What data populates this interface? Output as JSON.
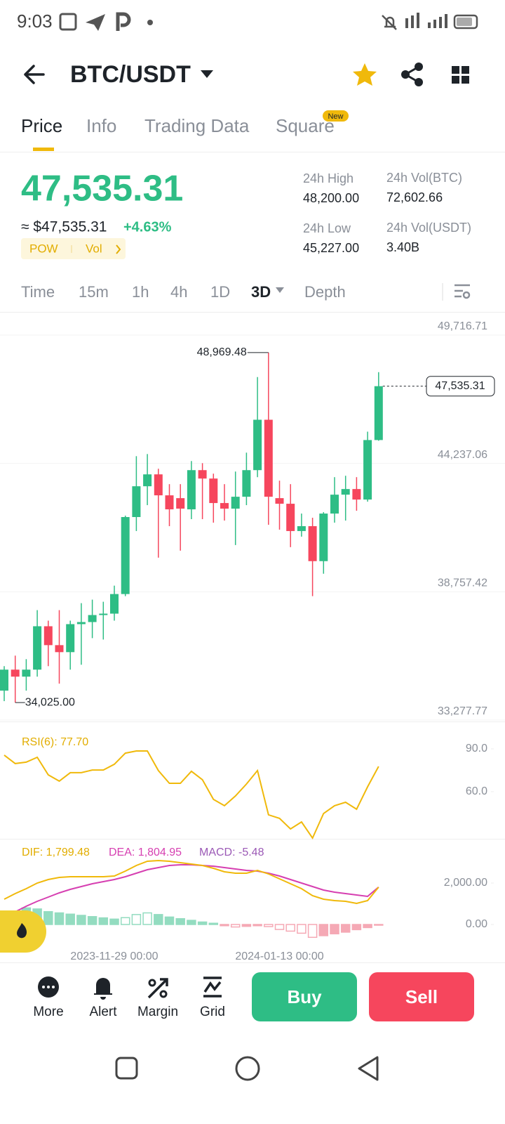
{
  "status_bar": {
    "time": "9:03"
  },
  "header": {
    "symbol": "BTC/USDT"
  },
  "tabs": [
    "Price",
    "Info",
    "Trading Data",
    "Square"
  ],
  "tab_badge": "New",
  "ticker": {
    "price": "47,535.31",
    "usd": "≈ $47,535.31",
    "change": "+4.63%",
    "tags": [
      "POW",
      "Vol"
    ],
    "stats": [
      {
        "label": "24h High",
        "value": "48,200.00"
      },
      {
        "label": "24h Vol(BTC)",
        "value": "72,602.66"
      },
      {
        "label": "24h Low",
        "value": "45,227.00"
      },
      {
        "label": "24h Vol(USDT)",
        "value": "3.40B"
      }
    ]
  },
  "intervals": [
    "Time",
    "15m",
    "1h",
    "4h",
    "1D",
    "3D",
    "Depth"
  ],
  "chart": {
    "type": "candlestick",
    "colors": {
      "up": "#2ebd85",
      "down": "#f6465d"
    },
    "ylim": [
      33277.77,
      49716.71
    ],
    "yticks": [
      {
        "value": 49716.71,
        "label": "49,716.71"
      },
      {
        "value": 44237.06,
        "label": "44,237.06"
      },
      {
        "value": 38757.42,
        "label": "38,757.42"
      },
      {
        "value": 33277.77,
        "label": "33,277.77"
      }
    ],
    "max_label": "48,969.48",
    "min_label": "34,025.00",
    "last_label": "47,535.31",
    "x_labels": [
      {
        "index": 10,
        "label": "2023-11-29 00:00"
      },
      {
        "index": 25,
        "label": "2024-01-13 00:00"
      }
    ],
    "candles": [
      {
        "open": 34534,
        "high": 35580,
        "low": 34086,
        "close": 35431
      },
      {
        "open": 35431,
        "high": 36029,
        "low": 34025,
        "close": 35132
      },
      {
        "open": 35132,
        "high": 35879,
        "low": 34534,
        "close": 35431
      },
      {
        "open": 35431,
        "high": 37972,
        "low": 35132,
        "close": 37284
      },
      {
        "open": 37284,
        "high": 37523,
        "low": 35580,
        "close": 36477
      },
      {
        "open": 36477,
        "high": 37972,
        "low": 34833,
        "close": 36178
      },
      {
        "open": 36178,
        "high": 37523,
        "low": 35431,
        "close": 37374
      },
      {
        "open": 37374,
        "high": 38270,
        "low": 35640,
        "close": 37463
      },
      {
        "open": 37463,
        "high": 38420,
        "low": 36776,
        "close": 37762
      },
      {
        "open": 37762,
        "high": 38330,
        "low": 36716,
        "close": 37822
      },
      {
        "open": 37822,
        "high": 39018,
        "low": 37523,
        "close": 38659
      },
      {
        "open": 38659,
        "high": 42007,
        "low": 38569,
        "close": 41947
      },
      {
        "open": 41947,
        "high": 44547,
        "low": 41349,
        "close": 43262
      },
      {
        "open": 43262,
        "high": 44637,
        "low": 42455,
        "close": 43770
      },
      {
        "open": 43770,
        "high": 44009,
        "low": 40213,
        "close": 42874
      },
      {
        "open": 42874,
        "high": 43352,
        "low": 41558,
        "close": 42276
      },
      {
        "open": 42754,
        "high": 43352,
        "low": 40512,
        "close": 42306
      },
      {
        "open": 42276,
        "high": 44338,
        "low": 41857,
        "close": 43950
      },
      {
        "open": 43950,
        "high": 44248,
        "low": 41857,
        "close": 43591
      },
      {
        "open": 43591,
        "high": 43800,
        "low": 41708,
        "close": 42545
      },
      {
        "open": 42545,
        "high": 43352,
        "low": 41797,
        "close": 42306
      },
      {
        "open": 42306,
        "high": 43890,
        "low": 40751,
        "close": 42814
      },
      {
        "open": 42814,
        "high": 44697,
        "low": 42455,
        "close": 43950
      },
      {
        "open": 43950,
        "high": 47925,
        "low": 43651,
        "close": 46102
      },
      {
        "open": 46102,
        "high": 48969.48,
        "low": 41618,
        "close": 42814
      },
      {
        "open": 42754,
        "high": 43501,
        "low": 41409,
        "close": 42515
      },
      {
        "open": 42515,
        "high": 43352,
        "low": 40662,
        "close": 41349
      },
      {
        "open": 41349,
        "high": 42096,
        "low": 41110,
        "close": 41558
      },
      {
        "open": 41558,
        "high": 41917,
        "low": 38569,
        "close": 40064
      },
      {
        "open": 40064,
        "high": 42156,
        "low": 39526,
        "close": 42096
      },
      {
        "open": 42096,
        "high": 43651,
        "low": 41708,
        "close": 42903
      },
      {
        "open": 42903,
        "high": 43710,
        "low": 41797,
        "close": 43143
      },
      {
        "open": 43143,
        "high": 43651,
        "low": 42216,
        "close": 42694
      },
      {
        "open": 42694,
        "high": 45593,
        "low": 42604,
        "close": 45235
      },
      {
        "open": 45235,
        "high": 48134,
        "low": 45205,
        "close": 47535.31
      }
    ]
  },
  "rsi": {
    "type": "line",
    "legend": "RSI(6): 77.70",
    "color": "#f0b90b",
    "ylim": [
      26.5,
      102.8
    ],
    "yticks": [
      {
        "value": 90,
        "label": "90.0"
      },
      {
        "value": 60,
        "label": "60.0"
      }
    ],
    "values": [
      85.6,
      79.7,
      80.7,
      84.1,
      71.8,
      67.4,
      73.3,
      73.3,
      75.2,
      75.2,
      79.2,
      87.0,
      88.5,
      88.5,
      74.8,
      65.9,
      65.9,
      74.3,
      68.4,
      54.6,
      50.2,
      57.0,
      65.4,
      74.8,
      43.8,
      41.3,
      33.9,
      38.8,
      27.5,
      44.7,
      50.2,
      52.6,
      47.7,
      63.4,
      77.7
    ]
  },
  "macd": {
    "type": "macd",
    "legend": [
      "DIF: 1,799.48",
      "DEA: 1,804.95",
      "MACD: -5.48"
    ],
    "colors": {
      "dif": "#f0b90b",
      "dea": "#d63fb1",
      "up": "#93dcc0",
      "down": "#f5a9b5"
    },
    "ylim": [
      -1322,
      3932
    ],
    "yticks": [
      {
        "value": 2000,
        "label": "2,000.00"
      },
      {
        "value": 0,
        "label": "0.00"
      }
    ],
    "dif": [
      1220,
      1492,
      1729,
      2000,
      2170,
      2271,
      2305,
      2305,
      2305,
      2305,
      2339,
      2576,
      2848,
      3051,
      3085,
      3051,
      2983,
      2915,
      2848,
      2712,
      2543,
      2475,
      2475,
      2610,
      2441,
      2204,
      1966,
      1729,
      1390,
      1220,
      1153,
      1119,
      1017,
      1153,
      1799.48
    ],
    "dea": [
      null,
      610,
      881,
      1119,
      1322,
      1526,
      1695,
      1831,
      1966,
      2068,
      2170,
      2305,
      2475,
      2644,
      2746,
      2848,
      2882,
      2882,
      2848,
      2814,
      2746,
      2678,
      2610,
      2576,
      2475,
      2339,
      2170,
      2000,
      1831,
      1661,
      1559,
      1492,
      1424,
      1356,
      1804.95
    ],
    "hist": [
      null,
      null,
      800,
      750,
      620,
      560,
      500,
      440,
      380,
      320,
      260,
      330,
      480,
      560,
      480,
      360,
      280,
      200,
      120,
      60,
      -60,
      -120,
      -90,
      -60,
      -100,
      -240,
      -320,
      -420,
      -620,
      -540,
      -450,
      -370,
      -250,
      -150,
      -5.48
    ]
  },
  "bottom_bar": {
    "actions": [
      "More",
      "Alert",
      "Margin",
      "Grid"
    ],
    "buy": "Buy",
    "sell": "Sell"
  }
}
